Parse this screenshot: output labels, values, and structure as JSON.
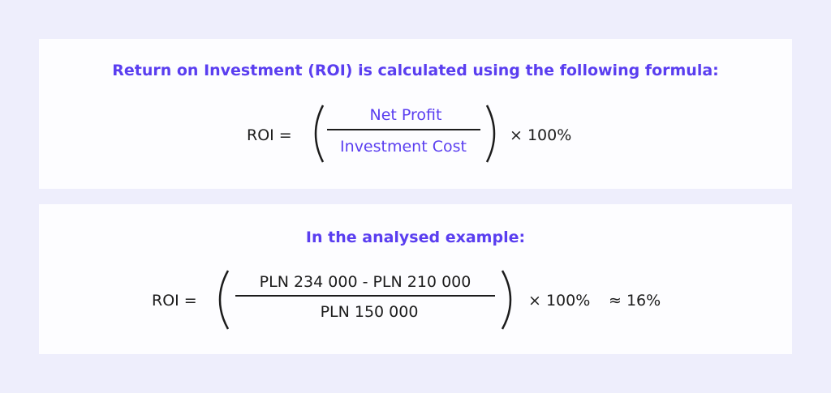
{
  "formula_panel": {
    "title": "Return on Investment (ROI) is calculated using the following formula:",
    "lhs": "ROI =",
    "numerator": "Net Profit",
    "denominator": "Investment Cost",
    "multiplier": "× 100%"
  },
  "example_panel": {
    "title": "In the analysed example:",
    "lhs": "ROI =",
    "numerator": "PLN 234 000 - PLN 210 000",
    "denominator": "PLN 150 000",
    "multiplier": "× 100%",
    "result": "≈ 16%"
  },
  "colors": {
    "accent": "#5a3ef0",
    "background": "#eeeefc",
    "panel": "#fdfdff",
    "text": "#1c1c1c"
  }
}
